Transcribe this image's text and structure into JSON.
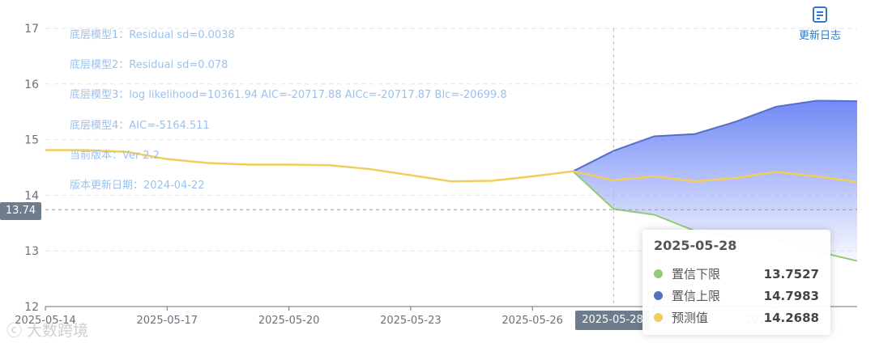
{
  "chart_data": {
    "type": "line",
    "x": [
      "2025-05-14",
      "2025-05-15",
      "2025-05-16",
      "2025-05-17",
      "2025-05-18",
      "2025-05-19",
      "2025-05-20",
      "2025-05-21",
      "2025-05-22",
      "2025-05-23",
      "2025-05-24",
      "2025-05-25",
      "2025-05-26",
      "2025-05-27",
      "2025-05-28",
      "2025-05-29",
      "2025-05-30",
      "2025-05-31",
      "2025-06-01",
      "2025-06-02",
      "2025-06-03"
    ],
    "x_tick_labels": [
      "2025-05-14",
      "2025-05-17",
      "2025-05-20",
      "2025-05-23",
      "2025-05-26",
      "2025-05-29",
      "2025-06-01"
    ],
    "ylim": [
      12,
      17
    ],
    "y_ticks": [
      12,
      13,
      14,
      15,
      16,
      17
    ],
    "grid": true,
    "series": [
      {
        "name": "预测值",
        "color": "#f2cd5c",
        "values": [
          14.81,
          14.81,
          14.78,
          14.65,
          14.58,
          14.55,
          14.55,
          14.54,
          14.47,
          14.36,
          14.25,
          14.26,
          14.34,
          14.43,
          14.27,
          14.34,
          14.25,
          14.31,
          14.42,
          14.34,
          14.24
        ]
      },
      {
        "name": "置信下限",
        "color": "#91cc75",
        "values": [
          null,
          null,
          null,
          null,
          null,
          null,
          null,
          null,
          null,
          null,
          null,
          null,
          null,
          14.43,
          13.7527,
          13.65,
          13.36,
          13.25,
          13.23,
          12.99,
          12.82
        ]
      },
      {
        "name": "置信上限",
        "color": "#5470c6",
        "values": [
          null,
          null,
          null,
          null,
          null,
          null,
          null,
          null,
          null,
          null,
          null,
          null,
          null,
          14.43,
          14.7983,
          15.06,
          15.1,
          15.32,
          15.59,
          15.7,
          15.69
        ]
      }
    ],
    "annotations": [
      "底层模型1：Residual sd=0.0038",
      "底层模型2：Residual sd=0.078",
      "底层模型3：log likelihood=10361.94 AIC=-20717.88 AICc=-20717.87 BIc=-20699.8",
      "底层模型4：AIC=-5164.511",
      "当前版本：Ver 2.2",
      "版本更新日期：2024-04-22"
    ]
  },
  "crosshair": {
    "x_label": "2025-05-28",
    "y_label": "13.74",
    "y_value": 13.74,
    "x_index": 14
  },
  "tooltip": {
    "title": "2025-05-28",
    "rows": [
      {
        "name": "置信下限",
        "value": "13.7527",
        "color": "#91cc75"
      },
      {
        "name": "置信上限",
        "value": "14.7983",
        "color": "#5470c6"
      },
      {
        "name": "预测值",
        "value": "14.2688",
        "color": "#f2cd5c"
      }
    ]
  },
  "toolbar": {
    "changelog_label": "更新日志",
    "changelog_icon": "document-icon"
  },
  "watermark": "大数跨境"
}
